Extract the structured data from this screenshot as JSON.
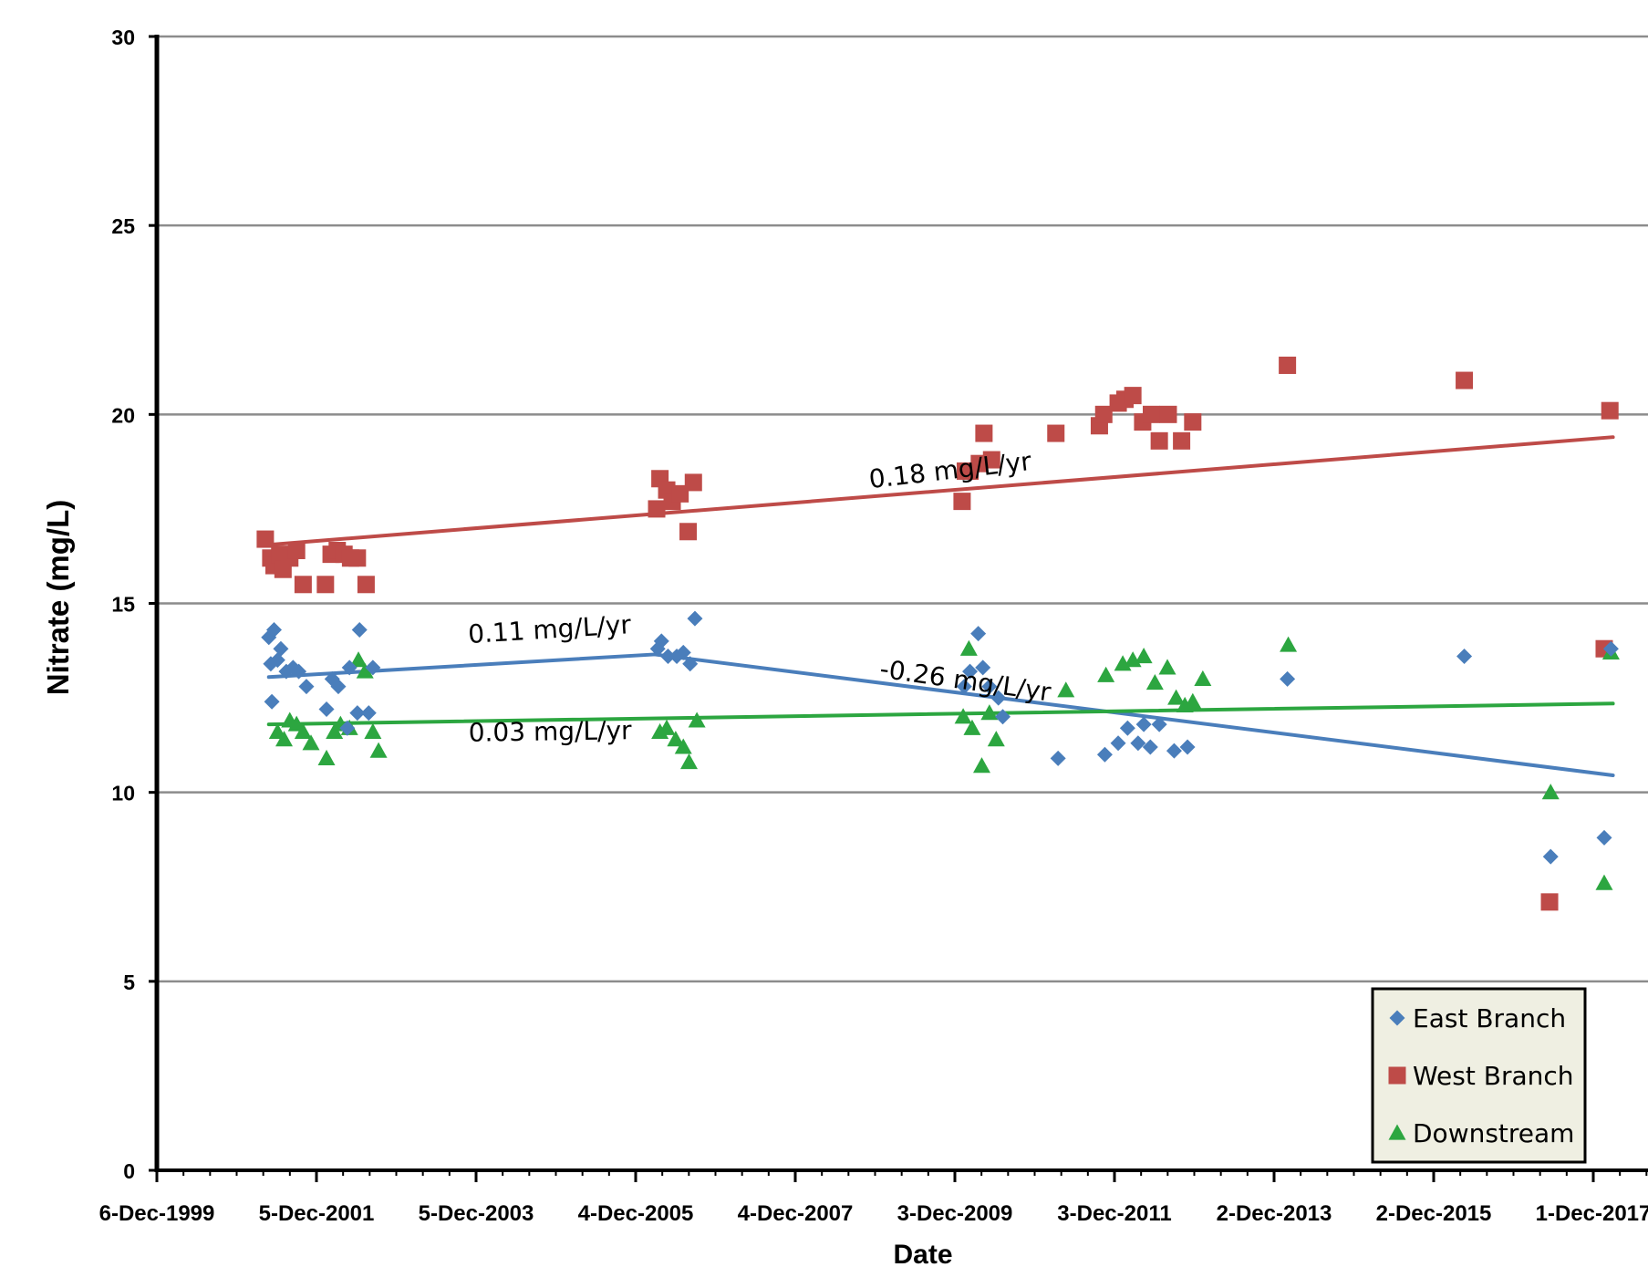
{
  "chart_data": {
    "type": "scatter",
    "title": "",
    "xlabel": "Date",
    "ylabel": "Nitrate (mg/L)",
    "ylim": [
      0,
      30
    ],
    "xlim": [
      "1999-12-06",
      "2018-03-01"
    ],
    "grid": true,
    "legend_position": "bottom-right",
    "yticks": [
      0,
      5,
      10,
      15,
      20,
      25,
      30
    ],
    "xticks": [
      {
        "date": "1999-12-06",
        "label": "6-Dec-1999"
      },
      {
        "date": "2001-12-05",
        "label": "5-Dec-2001"
      },
      {
        "date": "2003-12-05",
        "label": "5-Dec-2003"
      },
      {
        "date": "2005-12-04",
        "label": "4-Dec-2005"
      },
      {
        "date": "2007-12-04",
        "label": "4-Dec-2007"
      },
      {
        "date": "2009-12-03",
        "label": "3-Dec-2009"
      },
      {
        "date": "2011-12-03",
        "label": "3-Dec-2011"
      },
      {
        "date": "2013-12-02",
        "label": "2-Dec-2013"
      },
      {
        "date": "2015-12-02",
        "label": "2-Dec-2015"
      },
      {
        "date": "2017-12-01",
        "label": "1-Dec-2017"
      }
    ],
    "series": [
      {
        "name": "East Branch",
        "marker": "diamond",
        "color": "#4a7ebb",
        "points": [
          [
            "2001-05-01",
            14.1
          ],
          [
            "2001-05-10",
            13.4
          ],
          [
            "2001-05-15",
            12.4
          ],
          [
            "2001-05-25",
            14.3
          ],
          [
            "2001-06-10",
            13.5
          ],
          [
            "2001-06-25",
            13.8
          ],
          [
            "2001-07-20",
            13.2
          ],
          [
            "2001-08-20",
            13.3
          ],
          [
            "2001-09-15",
            13.2
          ],
          [
            "2001-10-20",
            12.8
          ],
          [
            "2002-01-20",
            12.2
          ],
          [
            "2002-02-15",
            13.0
          ],
          [
            "2002-03-15",
            12.8
          ],
          [
            "2002-04-25",
            11.7
          ],
          [
            "2002-05-05",
            13.3
          ],
          [
            "2002-06-10",
            12.1
          ],
          [
            "2002-06-20",
            14.3
          ],
          [
            "2002-08-01",
            12.1
          ],
          [
            "2002-08-20",
            13.3
          ],
          [
            "2006-03-15",
            13.8
          ],
          [
            "2006-04-01",
            14.0
          ],
          [
            "2006-05-01",
            13.6
          ],
          [
            "2006-06-10",
            13.6
          ],
          [
            "2006-07-10",
            13.7
          ],
          [
            "2006-08-10",
            13.4
          ],
          [
            "2006-09-01",
            14.6
          ],
          [
            "2010-01-15",
            12.8
          ],
          [
            "2010-02-10",
            13.2
          ],
          [
            "2010-03-20",
            14.2
          ],
          [
            "2010-04-10",
            13.3
          ],
          [
            "2010-05-10",
            12.8
          ],
          [
            "2010-06-20",
            12.5
          ],
          [
            "2010-07-10",
            12.0
          ],
          [
            "2011-03-20",
            10.9
          ],
          [
            "2011-10-20",
            11.0
          ],
          [
            "2011-12-20",
            11.3
          ],
          [
            "2012-02-01",
            11.7
          ],
          [
            "2012-03-20",
            11.3
          ],
          [
            "2012-04-15",
            11.8
          ],
          [
            "2012-05-15",
            11.2
          ],
          [
            "2012-06-25",
            11.8
          ],
          [
            "2012-09-01",
            11.1
          ],
          [
            "2012-11-01",
            11.2
          ],
          [
            "2014-02-01",
            13.0
          ],
          [
            "2016-04-20",
            13.6
          ],
          [
            "2017-05-20",
            8.3
          ],
          [
            "2018-01-20",
            8.8
          ],
          [
            "2018-02-20",
            13.8
          ]
        ]
      },
      {
        "name": "West Branch",
        "marker": "square",
        "color": "#be4b48",
        "points": [
          [
            "2001-04-15",
            16.7
          ],
          [
            "2001-05-10",
            16.2
          ],
          [
            "2001-05-25",
            16.0
          ],
          [
            "2001-06-20",
            16.3
          ],
          [
            "2001-07-05",
            15.9
          ],
          [
            "2001-08-05",
            16.2
          ],
          [
            "2001-09-05",
            16.4
          ],
          [
            "2001-10-05",
            15.5
          ],
          [
            "2002-01-15",
            15.5
          ],
          [
            "2002-02-10",
            16.3
          ],
          [
            "2002-03-10",
            16.4
          ],
          [
            "2002-04-10",
            16.3
          ],
          [
            "2002-05-10",
            16.2
          ],
          [
            "2002-06-10",
            16.2
          ],
          [
            "2002-07-20",
            15.5
          ],
          [
            "2006-03-10",
            17.5
          ],
          [
            "2006-03-25",
            18.3
          ],
          [
            "2006-04-25",
            18.0
          ],
          [
            "2006-05-20",
            17.7
          ],
          [
            "2006-06-25",
            17.9
          ],
          [
            "2006-08-01",
            16.9
          ],
          [
            "2006-08-25",
            18.2
          ],
          [
            "2010-01-05",
            17.7
          ],
          [
            "2010-01-20",
            18.5
          ],
          [
            "2010-02-10",
            18.5
          ],
          [
            "2010-03-25",
            18.7
          ],
          [
            "2010-04-15",
            19.5
          ],
          [
            "2010-05-20",
            18.8
          ],
          [
            "2011-03-10",
            19.5
          ],
          [
            "2011-09-25",
            19.7
          ],
          [
            "2011-10-15",
            20.0
          ],
          [
            "2011-12-20",
            20.3
          ],
          [
            "2012-01-20",
            20.4
          ],
          [
            "2012-02-25",
            20.5
          ],
          [
            "2012-04-10",
            19.8
          ],
          [
            "2012-05-20",
            20.0
          ],
          [
            "2012-06-25",
            19.3
          ],
          [
            "2012-08-05",
            20.0
          ],
          [
            "2012-10-05",
            19.3
          ],
          [
            "2012-11-25",
            19.8
          ],
          [
            "2014-02-01",
            21.3
          ],
          [
            "2016-04-20",
            20.9
          ],
          [
            "2017-05-15",
            7.1
          ],
          [
            "2018-01-20",
            13.8
          ],
          [
            "2018-02-15",
            20.1
          ]
        ]
      },
      {
        "name": "Downstream",
        "marker": "triangle",
        "color": "#2ca640",
        "points": [
          [
            "2001-06-10",
            11.6
          ],
          [
            "2001-07-10",
            11.4
          ],
          [
            "2001-08-05",
            11.9
          ],
          [
            "2001-09-05",
            11.8
          ],
          [
            "2001-10-05",
            11.6
          ],
          [
            "2001-11-10",
            11.3
          ],
          [
            "2002-01-20",
            10.9
          ],
          [
            "2002-02-25",
            11.6
          ],
          [
            "2002-03-25",
            11.8
          ],
          [
            "2002-05-05",
            11.7
          ],
          [
            "2002-06-15",
            13.5
          ],
          [
            "2002-07-15",
            13.2
          ],
          [
            "2002-08-20",
            11.6
          ],
          [
            "2002-09-15",
            11.1
          ],
          [
            "2006-03-25",
            11.6
          ],
          [
            "2006-04-25",
            11.7
          ],
          [
            "2006-06-05",
            11.4
          ],
          [
            "2006-07-10",
            11.2
          ],
          [
            "2006-08-05",
            10.8
          ],
          [
            "2006-09-10",
            11.9
          ],
          [
            "2010-01-10",
            12.0
          ],
          [
            "2010-02-05",
            13.8
          ],
          [
            "2010-02-20",
            11.7
          ],
          [
            "2010-04-05",
            10.7
          ],
          [
            "2010-05-10",
            12.1
          ],
          [
            "2010-06-10",
            11.4
          ],
          [
            "2011-04-25",
            12.7
          ],
          [
            "2011-10-25",
            13.1
          ],
          [
            "2012-01-10",
            13.4
          ],
          [
            "2012-02-25",
            13.5
          ],
          [
            "2012-04-15",
            13.6
          ],
          [
            "2012-06-05",
            12.9
          ],
          [
            "2012-08-01",
            13.3
          ],
          [
            "2012-09-10",
            12.5
          ],
          [
            "2012-10-20",
            12.3
          ],
          [
            "2012-11-25",
            12.4
          ],
          [
            "2013-01-10",
            13.0
          ],
          [
            "2014-02-05",
            13.9
          ],
          [
            "2017-05-20",
            10.0
          ],
          [
            "2018-01-20",
            7.6
          ],
          [
            "2018-02-20",
            13.7
          ]
        ]
      }
    ],
    "trendlines": [
      {
        "series": "West Branch",
        "color": "#be4b48",
        "from": [
          "2001-05-01",
          16.55
        ],
        "to": [
          "2018-03-01",
          19.4
        ],
        "label": "0.18 mg/L/yr",
        "label_at": [
          "2008-11-10",
          18.05
        ],
        "label_angle": -6.5
      },
      {
        "series": "East Branch",
        "color": "#4a7ebb",
        "from": [
          "2001-05-01",
          13.05
        ],
        "to": [
          "2006-03-01",
          13.65
        ],
        "label": "0.11 mg/L/yr",
        "label_at": [
          "2003-11-01",
          13.95
        ],
        "label_angle": -3.5
      },
      {
        "series": "East Branch",
        "color": "#4a7ebb",
        "from": [
          "2006-03-01",
          13.65
        ],
        "to": [
          "2018-03-01",
          10.45
        ],
        "label": "-0.26 mg/L/yr",
        "label_at": [
          "2008-12-20",
          13.05
        ],
        "label_angle": 8
      },
      {
        "series": "Downstream",
        "color": "#2ca640",
        "from": [
          "2001-05-01",
          11.8
        ],
        "to": [
          "2018-03-01",
          12.35
        ],
        "label": "0.03 mg/L/yr",
        "label_at": [
          "2003-11-01",
          11.35
        ],
        "label_angle": -0.8
      }
    ]
  }
}
